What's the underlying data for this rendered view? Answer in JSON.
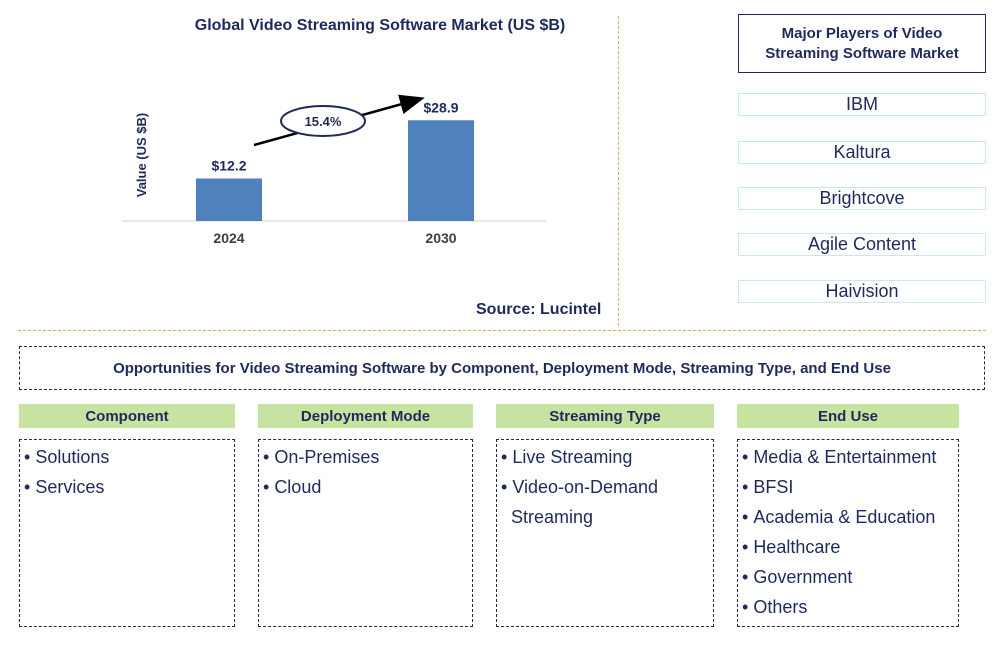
{
  "chart_data": {
    "type": "bar",
    "title": "Global Video Streaming Software Market (US $B)",
    "ylabel": "Value (US $B)",
    "xlabel": "",
    "categories": [
      "2024",
      "2030"
    ],
    "values": [
      12.2,
      28.9
    ],
    "value_labels": [
      "$12.2",
      "$28.9"
    ],
    "ylim": [
      0,
      33
    ],
    "bar_color": "#4f81bd",
    "growth_annotation": "15.4%",
    "grid": false
  },
  "source": "Source: Lucintel",
  "players": {
    "title": "Major Players of Video\nStreaming Software Market",
    "items": [
      "IBM",
      "Kaltura",
      "Brightcove",
      "Agile Content",
      "Haivision"
    ]
  },
  "opportunities": {
    "title": "Opportunities for Video Streaming Software by Component, Deployment Mode, Streaming Type, and End Use",
    "categories": [
      {
        "name": "Component",
        "items": [
          "Solutions",
          "Services"
        ]
      },
      {
        "name": "Deployment Mode",
        "items": [
          "On-Premises",
          "Cloud"
        ]
      },
      {
        "name": "Streaming Type",
        "items": [
          "Live Streaming",
          "Video-on-Demand|Streaming"
        ]
      },
      {
        "name": "End Use",
        "items": [
          "Media & Entertainment",
          "BFSI",
          "Academia & Education",
          "Healthcare",
          "Government",
          "Others"
        ]
      }
    ]
  },
  "colors": {
    "text": "#1f2a5c",
    "bar": "#4f81bd",
    "header_green": "#c6e3a1",
    "separator": "#e0b050"
  }
}
